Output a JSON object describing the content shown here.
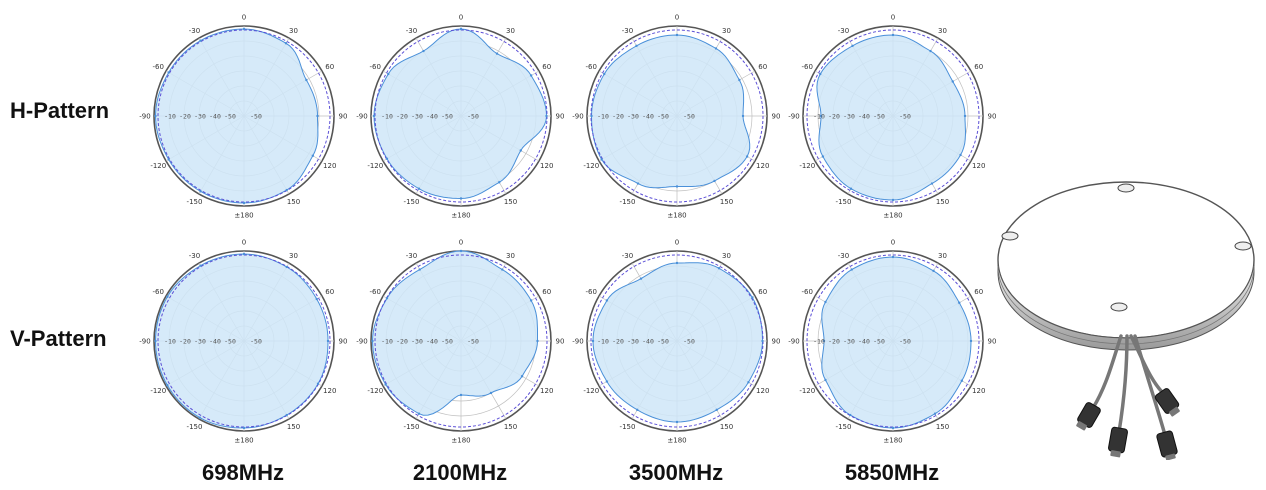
{
  "rows": [
    "H-Pattern",
    "V-Pattern"
  ],
  "frequencies": [
    "698MHz",
    "2100MHz",
    "3500MHz",
    "5850MHz"
  ],
  "colors": {
    "fill": "#cfe6f8",
    "trace": "#4a90d9",
    "reference": "#5b4fd6",
    "grid": "#bfbfbf",
    "outer_ring": "#555555"
  },
  "icons": {
    "antenna": "antenna-product-icon"
  },
  "chart_data": [
    {
      "type": "polar",
      "pattern": "H-Pattern",
      "frequency": "698MHz",
      "angle_labels": [
        "0",
        "30",
        "60",
        "90",
        "120",
        "150",
        "±180",
        "-150",
        "-120",
        "-90",
        "-60",
        "-30"
      ],
      "radial_labels": [
        "-10",
        "-20",
        "-30",
        "-40",
        "-50"
      ],
      "angles_deg": [
        0,
        30,
        60,
        90,
        120,
        150,
        180,
        210,
        240,
        270,
        300,
        330
      ],
      "gain_db": [
        -2,
        -4,
        -12,
        -11,
        -7,
        -3,
        -2,
        -2,
        -2,
        -1,
        -2,
        -2
      ]
    },
    {
      "type": "polar",
      "pattern": "H-Pattern",
      "frequency": "2100MHz",
      "angle_labels": [
        "0",
        "30",
        "60",
        "90",
        "120",
        "150",
        "±180",
        "-150",
        "-120",
        "-90",
        "-60",
        "-30"
      ],
      "radial_labels": [
        "-10",
        "-20",
        "-30",
        "-40",
        "-50"
      ],
      "angles_deg": [
        0,
        30,
        60,
        90,
        120,
        150,
        180,
        210,
        240,
        270,
        300,
        330
      ],
      "gain_db": [
        -2,
        -12,
        -6,
        -3,
        -14,
        -9,
        -5,
        -4,
        -3,
        -2,
        -4,
        -10
      ]
    },
    {
      "type": "polar",
      "pattern": "H-Pattern",
      "frequency": "3500MHz",
      "angle_labels": [
        "0",
        "30",
        "60",
        "90",
        "120",
        "150",
        "±180",
        "-150",
        "-120",
        "-90",
        "-60",
        "-30"
      ],
      "radial_labels": [
        "-10",
        "-20",
        "-30",
        "-40",
        "-50"
      ],
      "angles_deg": [
        0,
        30,
        60,
        90,
        120,
        150,
        180,
        210,
        240,
        270,
        300,
        330
      ],
      "gain_db": [
        -6,
        -8,
        -12,
        -16,
        -6,
        -10,
        -13,
        -8,
        -2,
        -3,
        -4,
        -6
      ]
    },
    {
      "type": "polar",
      "pattern": "H-Pattern",
      "frequency": "5850MHz",
      "angle_labels": [
        "0",
        "30",
        "60",
        "90",
        "120",
        "150",
        "±180",
        "-150",
        "-120",
        "-90",
        "-60",
        "-30"
      ],
      "radial_labels": [
        "-10",
        "-20",
        "-30",
        "-40",
        "-50"
      ],
      "angles_deg": [
        0,
        30,
        60,
        90,
        120,
        150,
        180,
        210,
        240,
        270,
        300,
        330
      ],
      "gain_db": [
        -6,
        -10,
        -14,
        -12,
        -8,
        -8,
        -4,
        -4,
        -6,
        -12,
        -4,
        -6
      ]
    },
    {
      "type": "polar",
      "pattern": "V-Pattern",
      "frequency": "698MHz",
      "angle_labels": [
        "0",
        "30",
        "60",
        "90",
        "120",
        "150",
        "±180",
        "-150",
        "-120",
        "-90",
        "-60",
        "-30"
      ],
      "radial_labels": [
        "-10",
        "-20",
        "-30",
        "-40",
        "-50"
      ],
      "angles_deg": [
        0,
        30,
        60,
        90,
        120,
        150,
        180,
        210,
        240,
        270,
        300,
        330
      ],
      "gain_db": [
        -2,
        -3,
        -4,
        -4,
        -3,
        -3,
        -2,
        -1,
        -1,
        -1,
        -1,
        -2
      ]
    },
    {
      "type": "polar",
      "pattern": "V-Pattern",
      "frequency": "2100MHz",
      "angle_labels": [
        "0",
        "30",
        "60",
        "90",
        "120",
        "150",
        "±180",
        "-150",
        "-120",
        "-90",
        "-60",
        "-30"
      ],
      "radial_labels": [
        "-10",
        "-20",
        "-30",
        "-40",
        "-50"
      ],
      "angles_deg": [
        0,
        30,
        60,
        90,
        120,
        150,
        180,
        210,
        240,
        270,
        300,
        330
      ],
      "gain_db": [
        0,
        -5,
        -6,
        -9,
        -13,
        -20,
        -24,
        -4,
        -2,
        -1,
        -3,
        -5
      ]
    },
    {
      "type": "polar",
      "pattern": "V-Pattern",
      "frequency": "3500MHz",
      "angle_labels": [
        "0",
        "30",
        "60",
        "90",
        "120",
        "150",
        "±180",
        "-150",
        "-120",
        "-90",
        "-60",
        "-30"
      ],
      "radial_labels": [
        "-10",
        "-20",
        "-30",
        "-40",
        "-50"
      ],
      "angles_deg": [
        0,
        30,
        60,
        90,
        120,
        150,
        180,
        210,
        240,
        270,
        300,
        330
      ],
      "gain_db": [
        -8,
        -4,
        -2,
        -3,
        -5,
        -7,
        -6,
        -7,
        -6,
        -4,
        -6,
        -12
      ]
    },
    {
      "type": "polar",
      "pattern": "V-Pattern",
      "frequency": "5850MHz",
      "angle_labels": [
        "0",
        "30",
        "60",
        "90",
        "120",
        "150",
        "±180",
        "-150",
        "-120",
        "-90",
        "-60",
        "-30"
      ],
      "radial_labels": [
        "-10",
        "-20",
        "-30",
        "-40",
        "-50"
      ],
      "angles_deg": [
        0,
        30,
        60,
        90,
        120,
        150,
        180,
        210,
        240,
        270,
        300,
        330
      ],
      "gain_db": [
        -4,
        -6,
        -9,
        -8,
        -7,
        -4,
        -2,
        -3,
        -8,
        -14,
        -8,
        -5
      ]
    }
  ]
}
